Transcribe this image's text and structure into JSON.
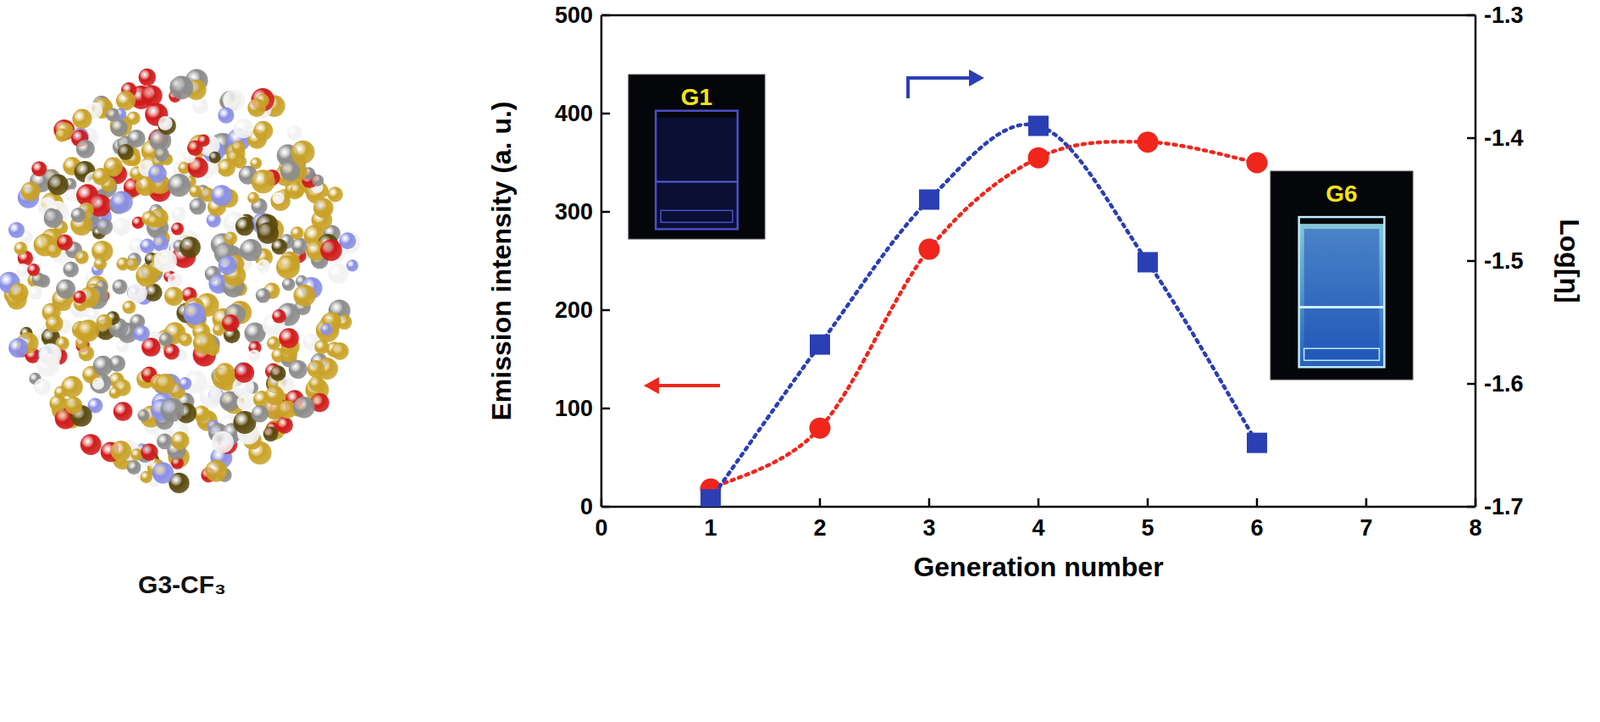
{
  "chart_data": {
    "type": "line",
    "x_label": "Generation number",
    "y_label": "Emission intensity (a. u.)",
    "y2_label": "Log[η]",
    "annotations": [
      "G1",
      "G6",
      "G3-CF₃"
    ],
    "x": [
      1,
      2,
      3,
      4,
      5,
      6
    ],
    "xlim": [
      0,
      8
    ],
    "xticks": [
      0,
      1,
      2,
      3,
      4,
      5,
      6,
      7,
      8
    ],
    "ylim": [
      0,
      500
    ],
    "yticks": [
      0,
      100,
      200,
      300,
      400,
      500
    ],
    "y2lim": [
      -1.7,
      -1.3
    ],
    "y2ticks": [
      -1.7,
      -1.6,
      -1.5,
      -1.4,
      -1.3
    ],
    "grid": false,
    "series": [
      {
        "name": "Emission intensity",
        "color": "#f0261c",
        "marker": "circle",
        "line_style": "dotted",
        "values": [
          18,
          80,
          262,
          355,
          371,
          350
        ]
      },
      {
        "name": "Log[η]",
        "color": "#2b3fb4",
        "marker": "square",
        "line_style": "dotted",
        "axis": "y2",
        "values": [
          -1.694,
          -1.568,
          -1.45,
          -1.39,
          -1.501,
          -1.648
        ]
      }
    ]
  }
}
